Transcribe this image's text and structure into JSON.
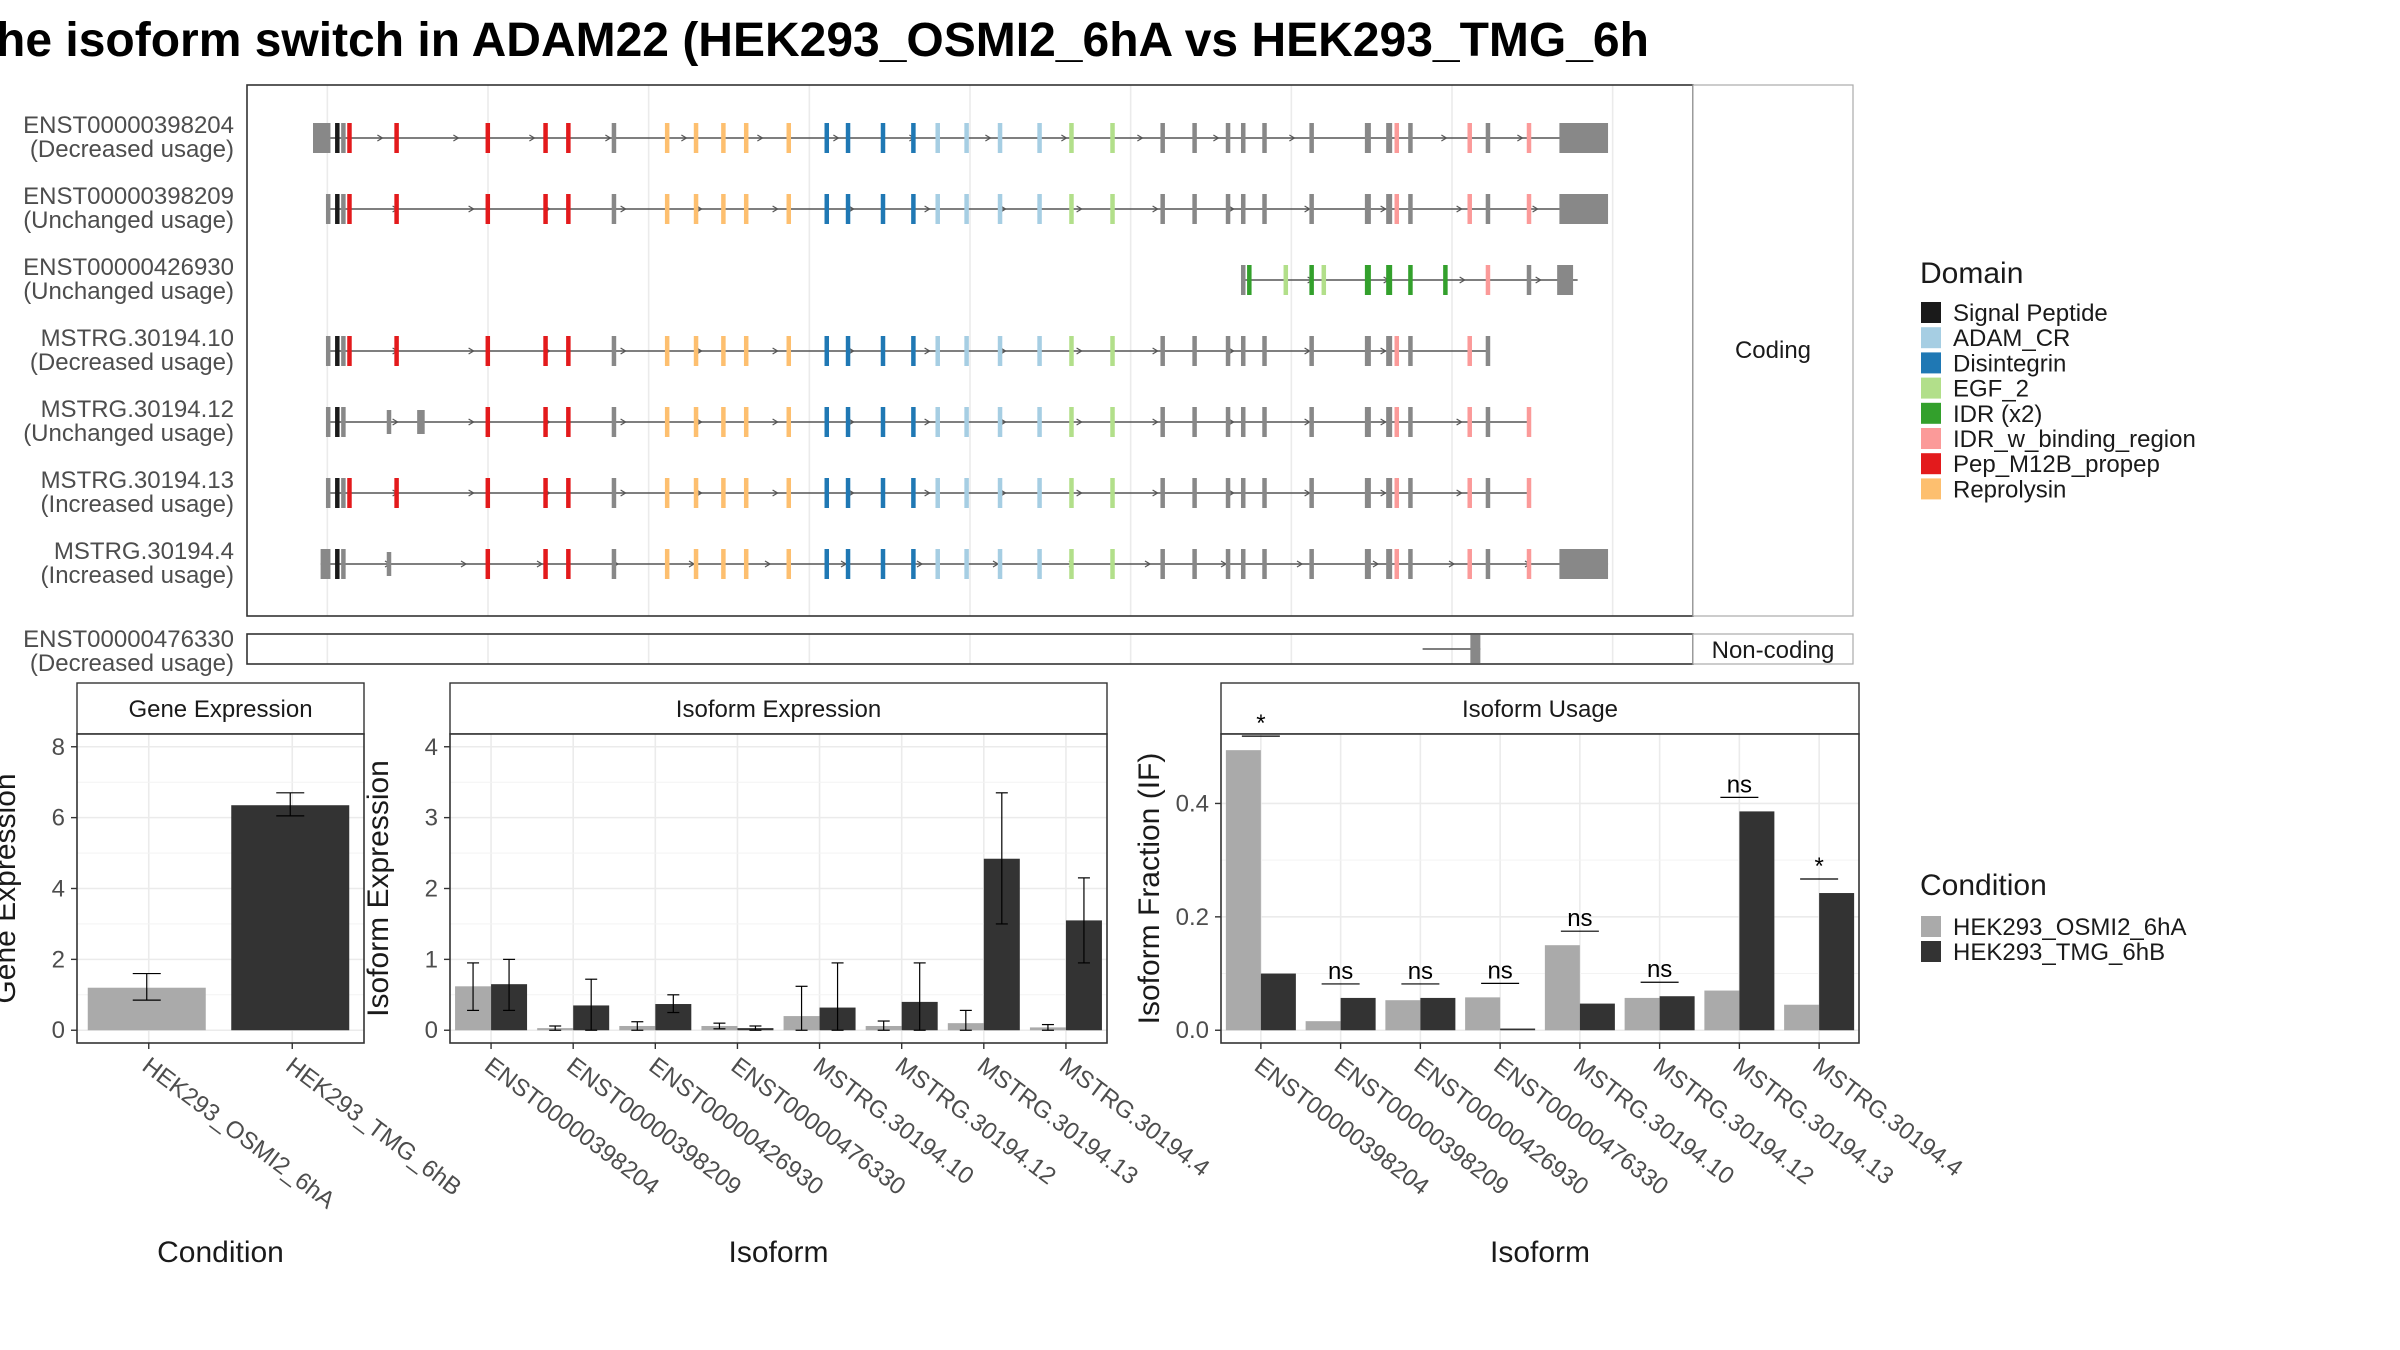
{
  "title": "he isoform switch in ADAM22 (HEK293_OSMI2_6hA vs HEK293_TMG_6h",
  "colors": {
    "intron": "#555555",
    "exon": "#888888",
    "panel_border": "#333333",
    "strip_fill": "#ffffff",
    "cond_a": "#aaaaaa",
    "cond_b": "#333333"
  },
  "domains": [
    {
      "name": "Signal Peptide",
      "color": "#1a1a1a"
    },
    {
      "name": "ADAM_CR",
      "color": "#a6cee3"
    },
    {
      "name": "Disintegrin",
      "color": "#1f78b4"
    },
    {
      "name": "EGF_2",
      "color": "#b2df8a"
    },
    {
      "name": "IDR (x2)",
      "color": "#33a02c"
    },
    {
      "name": "IDR_w_binding_region",
      "color": "#fb9a99"
    },
    {
      "name": "Pep_M12B_propep",
      "color": "#e31a1c"
    },
    {
      "name": "Reprolysin",
      "color": "#fdbf6f"
    }
  ],
  "legend_domain_title": "Domain",
  "legend_condition_title": "Condition",
  "conditions": [
    "HEK293_OSMI2_6hA",
    "HEK293_TMG_6hB"
  ],
  "structure": {
    "coding_strip": "Coding",
    "noncoding_strip": "Non-coding",
    "coding_isoforms": [
      {
        "id": "ENST00000398204",
        "usage": "(Decreased usage)",
        "start": 0,
        "end": 832,
        "utr5": [
          0,
          10
        ],
        "utr3": [
          820,
          852
        ]
      },
      {
        "id": "ENST00000398209",
        "usage": "(Unchanged usage)",
        "start": 10,
        "end": 832,
        "utr5": null,
        "utr3": [
          820,
          852
        ]
      },
      {
        "id": "ENST00000426930",
        "usage": "(Unchanged usage)",
        "start": 612,
        "end": 832,
        "utr5": null,
        "utr3": [
          820,
          829
        ]
      },
      {
        "id": "MSTRG.30194.10",
        "usage": "(Decreased usage)",
        "start": 10,
        "end": 773,
        "utr5": null,
        "utr3": null
      },
      {
        "id": "MSTRG.30194.12",
        "usage": "(Unchanged usage)",
        "start": 10,
        "end": 800,
        "utr5": null,
        "utr3": null
      },
      {
        "id": "MSTRG.30194.13",
        "usage": "(Increased usage)",
        "start": 10,
        "end": 800,
        "utr5": null,
        "utr3": null
      },
      {
        "id": "MSTRG.30194.4",
        "usage": "(Increased usage)",
        "start": 5,
        "end": 852,
        "utr5": [
          5,
          10
        ],
        "utr3": [
          820,
          852
        ]
      }
    ],
    "noncoding_isoforms": [
      {
        "id": "ENST00000476330",
        "usage": "(Decreased usage)",
        "start": 730,
        "end": 768
      }
    ]
  },
  "charts": [
    {
      "panel": "Gene Expression",
      "type": "bar",
      "xlabel": "Condition",
      "ylabel": "Gene Expression",
      "ylim": [
        0,
        8
      ],
      "yticks": [
        0,
        2,
        4,
        6,
        8
      ],
      "categories": [
        "HEK293_OSMI2_6hA",
        "HEK293_TMG_6hB"
      ],
      "values": [
        1.2,
        6.35
      ],
      "err_low": [
        0.85,
        6.05
      ],
      "err_high": [
        1.6,
        6.7
      ]
    },
    {
      "panel": "Isoform Expression",
      "type": "bar",
      "xlabel": "Isoform",
      "ylabel": "Isoform Expression",
      "ylim": [
        0,
        4
      ],
      "yticks": [
        0,
        1,
        2,
        3,
        4
      ],
      "categories": [
        "ENST00000398204",
        "ENST00000398209",
        "ENST00000426930",
        "ENST00000476330",
        "MSTRG.30194.10",
        "MSTRG.30194.12",
        "MSTRG.30194.13",
        "MSTRG.30194.4"
      ],
      "series": [
        {
          "name": "HEK293_OSMI2_6hA",
          "values": [
            0.62,
            0.03,
            0.06,
            0.06,
            0.2,
            0.06,
            0.1,
            0.04
          ],
          "err_low": [
            0.28,
            0.0,
            0.0,
            0.02,
            0.0,
            0.0,
            0.0,
            0.0
          ],
          "err_high": [
            0.95,
            0.06,
            0.12,
            0.1,
            0.62,
            0.13,
            0.28,
            0.08
          ]
        },
        {
          "name": "HEK293_TMG_6hB",
          "values": [
            0.65,
            0.35,
            0.37,
            0.03,
            0.32,
            0.4,
            2.42,
            1.55
          ],
          "err_low": [
            0.28,
            0.0,
            0.25,
            0.0,
            0.0,
            0.0,
            1.5,
            0.95
          ],
          "err_high": [
            1.0,
            0.72,
            0.5,
            0.06,
            0.95,
            0.95,
            3.35,
            2.15
          ]
        }
      ]
    },
    {
      "panel": "Isoform Usage",
      "type": "bar",
      "xlabel": "Isoform",
      "ylabel": "Isoform Fraction (IF)",
      "ylim": [
        0,
        0.5
      ],
      "yticks": [
        0.0,
        0.2,
        0.4
      ],
      "ytick_labels": [
        "0.0",
        "0.2",
        "0.4"
      ],
      "categories": [
        "ENST00000398204",
        "ENST00000398209",
        "ENST00000426930",
        "ENST00000476330",
        "MSTRG.30194.10",
        "MSTRG.30194.12",
        "MSTRG.30194.13",
        "MSTRG.30194.4"
      ],
      "series": [
        {
          "name": "HEK293_OSMI2_6hA",
          "values": [
            0.494,
            0.016,
            0.053,
            0.058,
            0.15,
            0.057,
            0.07,
            0.045
          ]
        },
        {
          "name": "HEK293_TMG_6hB",
          "values": [
            0.1,
            0.057,
            0.057,
            0.003,
            0.047,
            0.06,
            0.386,
            0.242
          ]
        }
      ],
      "significance": [
        "*",
        "ns",
        "ns",
        "ns",
        "ns",
        "ns",
        "ns",
        "*"
      ]
    }
  ]
}
